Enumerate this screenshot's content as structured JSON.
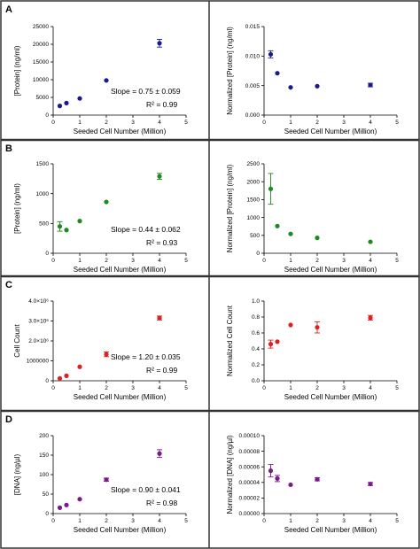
{
  "chart_data": [
    {
      "type": "scatter",
      "panel_label": "A",
      "color": "#1a1a8c",
      "xlabel": "Seeded Cell Number (Million)",
      "ylabel": "[Protein] (ng/ml)",
      "xlim": [
        0,
        5
      ],
      "ylim": [
        0,
        25000
      ],
      "xticks": [
        "0",
        "1",
        "2",
        "3",
        "4",
        "5"
      ],
      "yticks": [
        "0",
        "5000",
        "10000",
        "15000",
        "20000",
        "25000"
      ],
      "ytick_values": [
        0,
        5000,
        10000,
        15000,
        20000,
        25000
      ],
      "x": [
        0.25,
        0.5,
        1,
        2,
        4
      ],
      "y": [
        2600,
        3400,
        4700,
        9800,
        20300
      ],
      "err": [
        0,
        0,
        0,
        0,
        1100
      ],
      "slope_text": "Slope = 0.75 ± 0.059",
      "r2_text": "R² = 0.99"
    },
    {
      "type": "scatter",
      "panel_label": "",
      "color": "#1a1a8c",
      "xlabel": "Seeded Cell Number (Million)",
      "ylabel": "Normalized [Protein] (ng/ml)",
      "xlim": [
        0,
        5
      ],
      "ylim": [
        0,
        0.015
      ],
      "xticks": [
        "0",
        "1",
        "2",
        "3",
        "4",
        "5"
      ],
      "yticks": [
        "0.000",
        "0.005",
        "0.010",
        "0.015"
      ],
      "ytick_values": [
        0,
        0.005,
        0.01,
        0.015
      ],
      "x": [
        0.25,
        0.5,
        1,
        2,
        4
      ],
      "y": [
        0.0103,
        0.0071,
        0.0047,
        0.0049,
        0.0051
      ],
      "err": [
        0.0006,
        0,
        0,
        0,
        0.0003
      ],
      "slope_text": "",
      "r2_text": ""
    },
    {
      "type": "scatter",
      "panel_label": "B",
      "color": "#1f8a1f",
      "xlabel": "Seeded Cell Number (Million)",
      "ylabel": "[Protein] (ng/ml)",
      "xlim": [
        0,
        5
      ],
      "ylim": [
        0,
        1500
      ],
      "xticks": [
        "0",
        "1",
        "2",
        "3",
        "4",
        "5"
      ],
      "yticks": [
        "0",
        "500",
        "1000",
        "1500"
      ],
      "ytick_values": [
        0,
        500,
        1000,
        1500
      ],
      "x": [
        0.25,
        0.5,
        1,
        2,
        4
      ],
      "y": [
        450,
        390,
        540,
        860,
        1290
      ],
      "err": [
        80,
        0,
        0,
        0,
        50
      ],
      "slope_text": "Slope = 0.44 ± 0.062",
      "r2_text": "R² = 0.93"
    },
    {
      "type": "scatter",
      "panel_label": "",
      "color": "#1f8a1f",
      "xlabel": "Seeded Cell Number (Million)",
      "ylabel": "Normalized [Protein] (ng/ml)",
      "xlim": [
        0,
        5
      ],
      "ylim": [
        0,
        2500
      ],
      "xticks": [
        "0",
        "1",
        "2",
        "3",
        "4",
        "5"
      ],
      "yticks": [
        "0",
        "500",
        "1000",
        "1500",
        "2000",
        "2500"
      ],
      "ytick_values": [
        0,
        500,
        1000,
        1500,
        2000,
        2500
      ],
      "x": [
        0.25,
        0.5,
        1,
        2,
        4
      ],
      "y": [
        1800,
        760,
        540,
        430,
        320
      ],
      "err": [
        430,
        0,
        0,
        0,
        0
      ],
      "slope_text": "",
      "r2_text": ""
    },
    {
      "type": "scatter",
      "panel_label": "C",
      "color": "#e02020",
      "xlabel": "Seeded Cell Number (Million)",
      "ylabel": "Cell Count",
      "xlim": [
        0,
        5
      ],
      "ylim": [
        0,
        4000000
      ],
      "xticks": [
        "0",
        "1",
        "2",
        "3",
        "4",
        "5"
      ],
      "yticks": [
        "0",
        "1000000",
        "2.0×10⁶",
        "3.0×10⁶",
        "4.0×10⁶"
      ],
      "ytick_values": [
        0,
        1000000,
        2000000,
        3000000,
        4000000
      ],
      "x": [
        0.25,
        0.5,
        1,
        2,
        4
      ],
      "y": [
        120000,
        250000,
        700000,
        1330000,
        3150000
      ],
      "err": [
        0,
        0,
        0,
        120000,
        100000
      ],
      "slope_text": "Slope = 1.20 ± 0.035",
      "r2_text": "R² = 0.99"
    },
    {
      "type": "scatter",
      "panel_label": "",
      "color": "#e02020",
      "xlabel": "Seeded Cell Number (Million)",
      "ylabel": "Normalized Cell Count",
      "xlim": [
        0,
        5
      ],
      "ylim": [
        0,
        1.0
      ],
      "xticks": [
        "0",
        "1",
        "2",
        "3",
        "4",
        "5"
      ],
      "yticks": [
        "0.0",
        "0.2",
        "0.4",
        "0.6",
        "0.8",
        "1.0"
      ],
      "ytick_values": [
        0,
        0.2,
        0.4,
        0.6,
        0.8,
        1.0
      ],
      "x": [
        0.25,
        0.5,
        1,
        2,
        4
      ],
      "y": [
        0.46,
        0.49,
        0.7,
        0.67,
        0.79
      ],
      "err": [
        0.05,
        0,
        0,
        0.07,
        0.03
      ],
      "slope_text": "",
      "r2_text": ""
    },
    {
      "type": "scatter",
      "panel_label": "D",
      "color": "#7a1a8c",
      "xlabel": "Seeded Cell Number (Million)",
      "ylabel": "[DNA] (ng/µl)",
      "xlim": [
        0,
        5
      ],
      "ylim": [
        0,
        200
      ],
      "xticks": [
        "0",
        "1",
        "2",
        "3",
        "4",
        "5"
      ],
      "yticks": [
        "0",
        "50",
        "100",
        "150",
        "200"
      ],
      "ytick_values": [
        0,
        50,
        100,
        150,
        200
      ],
      "x": [
        0.25,
        0.5,
        1,
        2,
        4
      ],
      "y": [
        15,
        22,
        37,
        87,
        154
      ],
      "err": [
        0,
        0,
        0,
        4,
        10
      ],
      "slope_text": "Slope = 0.90 ± 0.041",
      "r2_text": "R² = 0.98"
    },
    {
      "type": "scatter",
      "panel_label": "",
      "color": "#7a1a8c",
      "xlabel": "Seeded Cell Number (Million)",
      "ylabel": "Normalized [DNA] (ng/µl)",
      "xlim": [
        0,
        5
      ],
      "ylim": [
        0,
        0.0001
      ],
      "xticks": [
        "0",
        "1",
        "2",
        "3",
        "4",
        "5"
      ],
      "yticks": [
        "0.00000",
        "0.00002",
        "0.00004",
        "0.00006",
        "0.00008",
        "0.00010"
      ],
      "ytick_values": [
        0,
        2e-05,
        4e-05,
        6e-05,
        8e-05,
        0.0001
      ],
      "x": [
        0.25,
        0.5,
        1,
        2,
        4
      ],
      "y": [
        5.5e-05,
        4.5e-05,
        3.7e-05,
        4.4e-05,
        3.8e-05
      ],
      "err": [
        8e-06,
        4e-06,
        0,
        2e-06,
        2e-06
      ],
      "slope_text": "",
      "r2_text": ""
    }
  ]
}
